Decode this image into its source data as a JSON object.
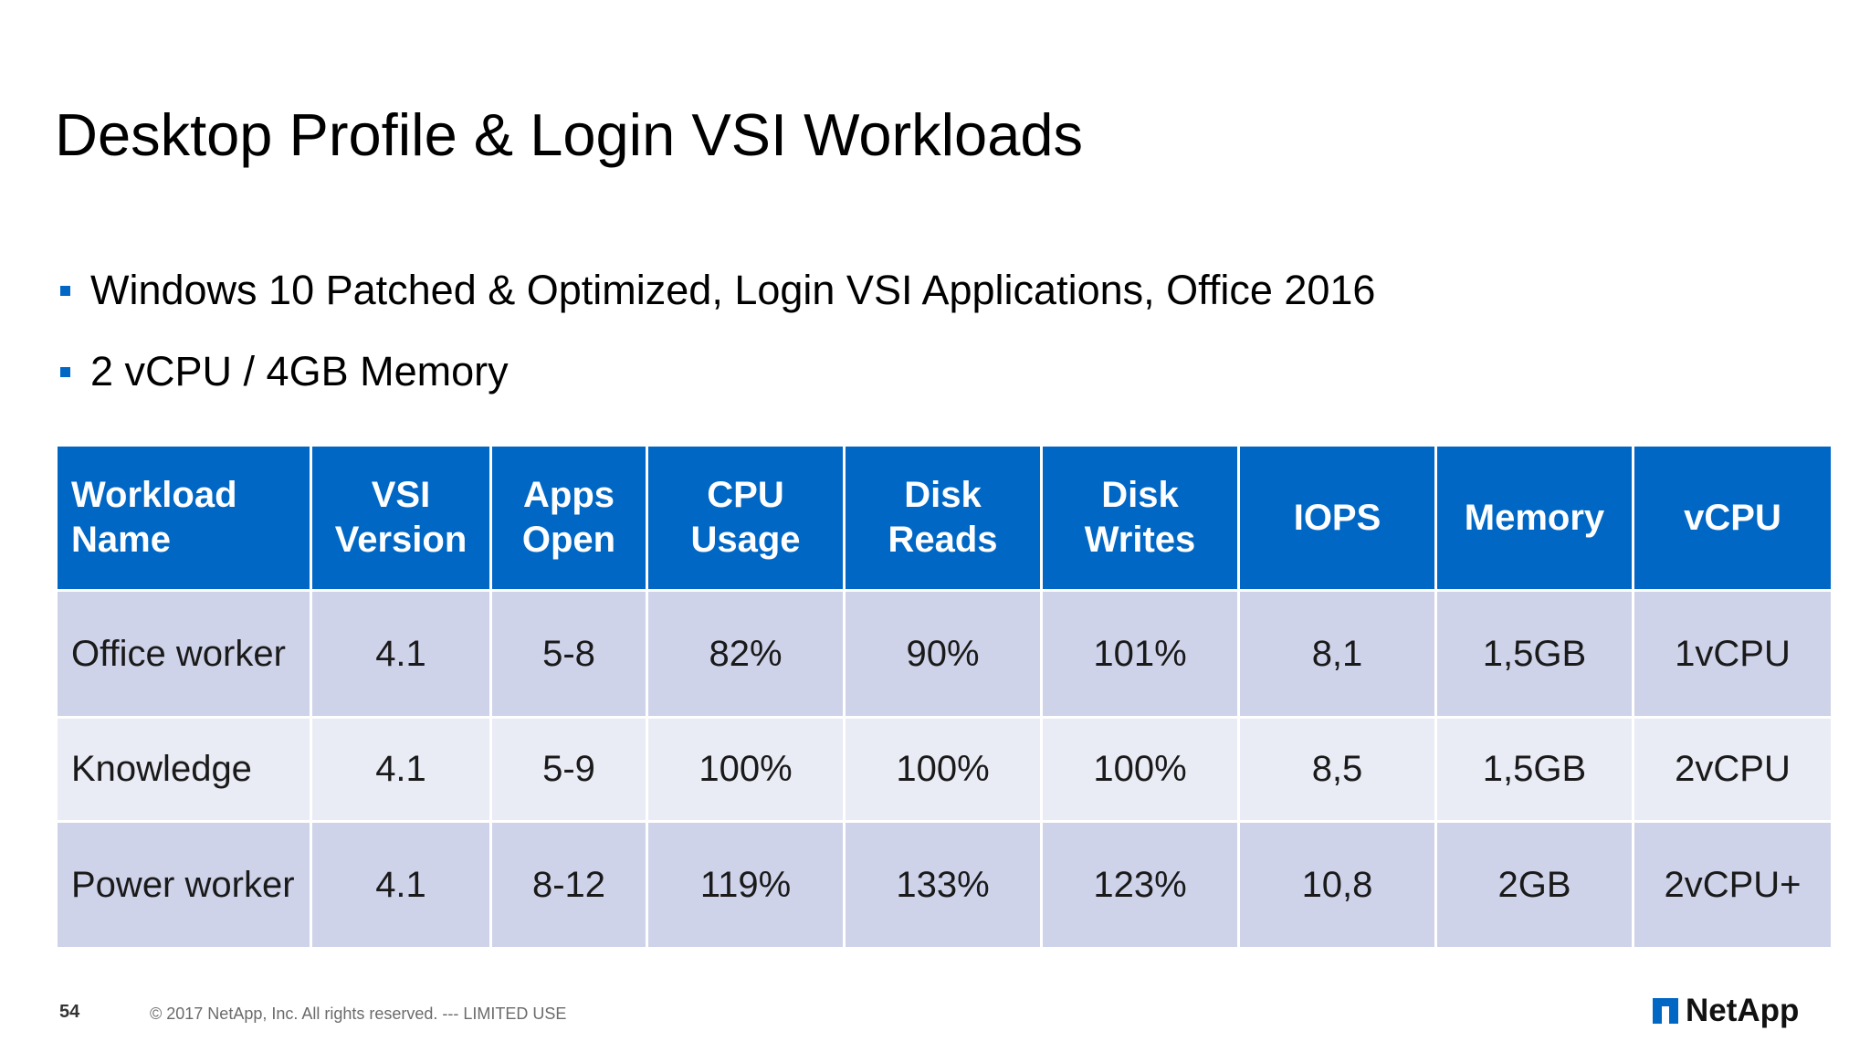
{
  "slide": {
    "title": "Desktop Profile & Login VSI Workloads",
    "bullets": [
      "Windows 10 Patched & Optimized, Login VSI Applications, Office 2016",
      "2 vCPU / 4GB Memory"
    ]
  },
  "table": {
    "headers": [
      [
        "Workload",
        "Name"
      ],
      [
        "VSI",
        "Version"
      ],
      [
        "Apps",
        "Open"
      ],
      [
        "CPU",
        "Usage"
      ],
      [
        "Disk",
        "Reads"
      ],
      [
        "Disk",
        "Writes"
      ],
      [
        "IOPS",
        ""
      ],
      [
        "Memory",
        ""
      ],
      [
        "vCPU",
        ""
      ]
    ],
    "rows": [
      [
        "Office worker",
        "4.1",
        "5-8",
        "82%",
        "90%",
        "101%",
        "8,1",
        "1,5GB",
        "1vCPU"
      ],
      [
        "Knowledge",
        "4.1",
        "5-9",
        "100%",
        "100%",
        "100%",
        "8,5",
        "1,5GB",
        "2vCPU"
      ],
      [
        "Power worker",
        "4.1",
        "8-12",
        "119%",
        "133%",
        "123%",
        "10,8",
        "2GB",
        "2vCPU+"
      ]
    ]
  },
  "footer": {
    "page_number": "54",
    "copyright": "© 2017 NetApp, Inc. All rights reserved.  ---  LIMITED USE",
    "logo_text": "NetApp"
  },
  "colors": {
    "header_blue": "#0067c5",
    "row_dark": "#cfd3ea",
    "row_light": "#e9ebf5"
  }
}
